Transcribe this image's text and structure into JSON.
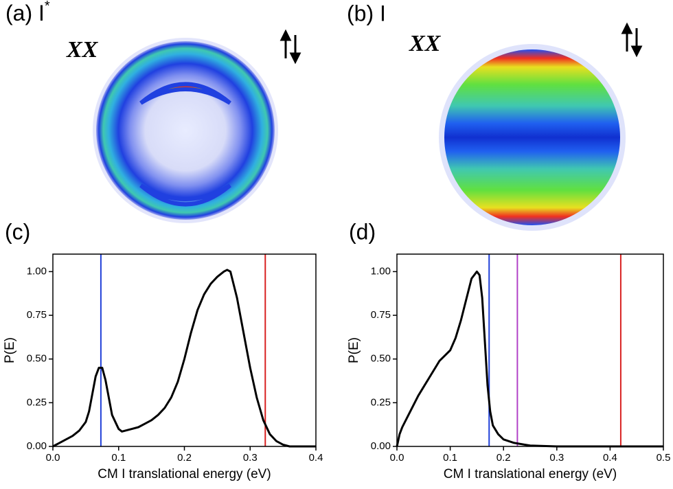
{
  "images": [
    {
      "label": "(a) I",
      "superscript": "*",
      "text": "XX"
    },
    {
      "label": "(b) I",
      "text": "XX"
    }
  ],
  "chart_data": [
    {
      "type": "line",
      "label": "(c)",
      "ylabel": "P(E)",
      "xlabel": "CM I translational energy (eV)",
      "xlim": [
        0,
        0.4
      ],
      "xticks": [
        {
          "value": 0,
          "label": "0.0"
        },
        {
          "value": 0.1,
          "label": "0.1"
        },
        {
          "value": 0.2,
          "label": "0.2"
        },
        {
          "value": 0.3,
          "label": "0.3"
        },
        {
          "value": 0.4,
          "label": "0.4"
        }
      ],
      "ylim": [
        0,
        1.1
      ],
      "yticks": [
        {
          "value": 0,
          "label": "0.00"
        },
        {
          "value": 0.25,
          "label": "0.25"
        },
        {
          "value": 0.5,
          "label": "0.50"
        },
        {
          "value": 0.75,
          "label": "0.75"
        },
        {
          "value": 1,
          "label": "1.00"
        }
      ],
      "color": "#000000",
      "x": [
        0,
        0.01,
        0.02,
        0.03,
        0.04,
        0.05,
        0.055,
        0.06,
        0.065,
        0.07,
        0.075,
        0.08,
        0.085,
        0.09,
        0.1,
        0.105,
        0.11,
        0.12,
        0.13,
        0.14,
        0.15,
        0.16,
        0.17,
        0.18,
        0.19,
        0.2,
        0.21,
        0.22,
        0.23,
        0.24,
        0.25,
        0.26,
        0.265,
        0.27,
        0.28,
        0.29,
        0.3,
        0.31,
        0.32,
        0.33,
        0.34,
        0.35,
        0.36,
        0.4
      ],
      "values": [
        0,
        0.02,
        0.04,
        0.06,
        0.09,
        0.14,
        0.2,
        0.3,
        0.4,
        0.45,
        0.45,
        0.38,
        0.28,
        0.18,
        0.1,
        0.085,
        0.09,
        0.1,
        0.11,
        0.13,
        0.15,
        0.18,
        0.22,
        0.28,
        0.37,
        0.5,
        0.65,
        0.78,
        0.87,
        0.93,
        0.97,
        1.0,
        1.01,
        1.0,
        0.85,
        0.65,
        0.45,
        0.28,
        0.15,
        0.07,
        0.03,
        0.01,
        0,
        0
      ],
      "vlines": [
        {
          "x": 0.073,
          "color": "#2040d8"
        },
        {
          "x": 0.323,
          "color": "#d82020"
        }
      ]
    },
    {
      "type": "line",
      "label": "(d)",
      "ylabel": "P(E)",
      "xlabel": "CM I translational energy (eV)",
      "xlim": [
        0,
        0.5
      ],
      "xticks": [
        {
          "value": 0,
          "label": "0.0"
        },
        {
          "value": 0.1,
          "label": "0.1"
        },
        {
          "value": 0.2,
          "label": "0.2"
        },
        {
          "value": 0.3,
          "label": "0.3"
        },
        {
          "value": 0.4,
          "label": "0.4"
        },
        {
          "value": 0.5,
          "label": "0.5"
        }
      ],
      "ylim": [
        0,
        1.1
      ],
      "yticks": [
        {
          "value": 0,
          "label": "0.00"
        },
        {
          "value": 0.25,
          "label": "0.25"
        },
        {
          "value": 0.5,
          "label": "0.50"
        },
        {
          "value": 0.75,
          "label": "0.75"
        },
        {
          "value": 1,
          "label": "1.00"
        }
      ],
      "color": "#000000",
      "x": [
        0,
        0.005,
        0.01,
        0.02,
        0.03,
        0.04,
        0.05,
        0.06,
        0.07,
        0.08,
        0.09,
        0.1,
        0.11,
        0.12,
        0.13,
        0.14,
        0.15,
        0.155,
        0.16,
        0.165,
        0.17,
        0.175,
        0.18,
        0.19,
        0.2,
        0.22,
        0.25,
        0.3,
        0.5
      ],
      "values": [
        0,
        0.07,
        0.11,
        0.17,
        0.23,
        0.29,
        0.34,
        0.39,
        0.44,
        0.49,
        0.52,
        0.55,
        0.62,
        0.72,
        0.84,
        0.96,
        1.0,
        0.98,
        0.85,
        0.6,
        0.35,
        0.2,
        0.12,
        0.07,
        0.04,
        0.02,
        0.005,
        0,
        0
      ],
      "vlines": [
        {
          "x": 0.173,
          "color": "#2040d8"
        },
        {
          "x": 0.226,
          "color": "#b040c8"
        },
        {
          "x": 0.42,
          "color": "#d82020"
        }
      ]
    }
  ]
}
